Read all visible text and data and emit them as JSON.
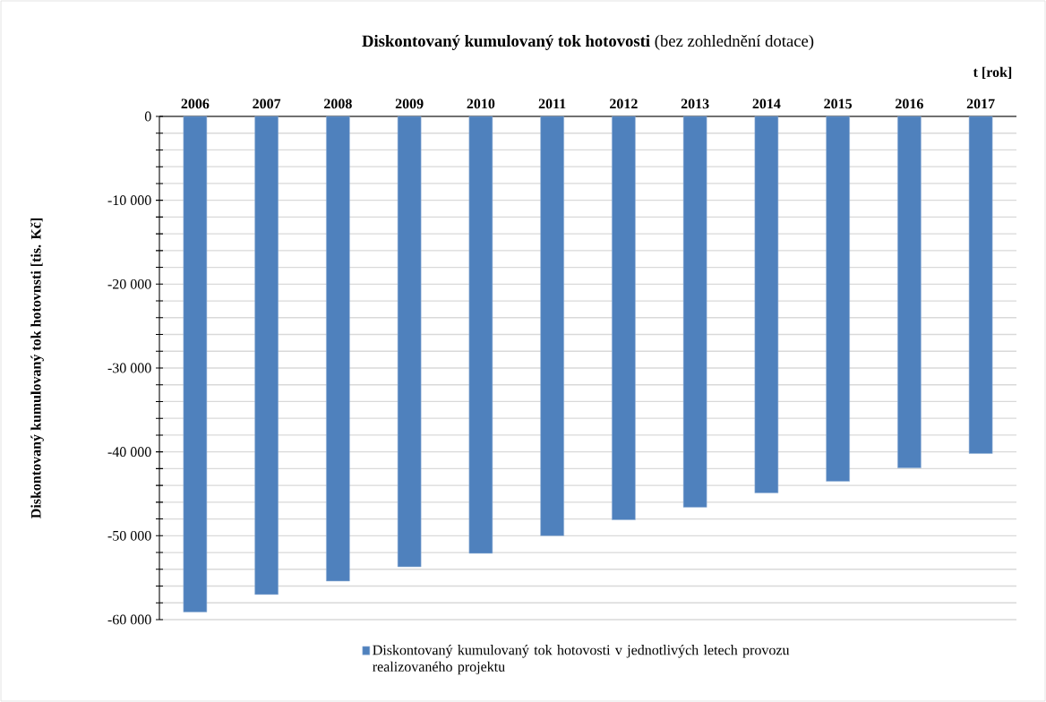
{
  "chart_data": {
    "type": "bar",
    "title": "**Diskontovaný kumulovaný tok hotovosti** (bez zohlednění dotace)",
    "xlabel": "t [rok]",
    "ylabel": "Diskontovaný kumulovaný tok hotovnsti  [tis. Kč]",
    "categories": [
      "2006",
      "2007",
      "2008",
      "2009",
      "2010",
      "2011",
      "2012",
      "2013",
      "2014",
      "2015",
      "2016",
      "2017"
    ],
    "series": [
      {
        "name": "Diskontovaný kumulovaný tok hotovosti v jednotlivých letech provozu realizovaného projektu",
        "color": "#4f81bd",
        "values": [
          -59100,
          -57000,
          -55400,
          -53700,
          -52100,
          -50000,
          -48100,
          -46600,
          -44900,
          -43500,
          -41900,
          -40200
        ]
      }
    ],
    "ylim": [
      -60000,
      0
    ],
    "yticks": [
      0,
      {
        "value": -2000,
        "label": null
      },
      {
        "value": -4000,
        "label": null
      },
      {
        "value": -6000,
        "label": null
      },
      {
        "value": -8000,
        "label": null
      },
      {
        "value": -10000,
        "label": "-10 000"
      },
      {
        "value": -12000,
        "label": null
      },
      {
        "value": -14000,
        "label": null
      },
      {
        "value": -16000,
        "label": null
      },
      {
        "value": -18000,
        "label": null
      },
      {
        "value": -20000,
        "label": "-20 000"
      },
      {
        "value": -22000,
        "label": null
      },
      {
        "value": -24000,
        "label": null
      },
      {
        "value": -26000,
        "label": null
      },
      {
        "value": -28000,
        "label": null
      },
      {
        "value": -30000,
        "label": "-30 000"
      },
      {
        "value": -32000,
        "label": null
      },
      {
        "value": -34000,
        "label": null
      },
      {
        "value": -36000,
        "label": null
      },
      {
        "value": -38000,
        "label": null
      },
      {
        "value": -40000,
        "label": "-40 000"
      },
      {
        "value": -42000,
        "label": null
      },
      {
        "value": -44000,
        "label": null
      },
      {
        "value": -46000,
        "label": null
      },
      {
        "value": -48000,
        "label": null
      },
      {
        "value": -50000,
        "label": "-50 000"
      },
      {
        "value": -52000,
        "label": null
      },
      {
        "value": -54000,
        "label": null
      },
      {
        "value": -56000,
        "label": null
      },
      {
        "value": -58000,
        "label": null
      },
      {
        "value": -60000,
        "label": "-60 000"
      }
    ],
    "grid": "y",
    "legend": "bottom"
  }
}
